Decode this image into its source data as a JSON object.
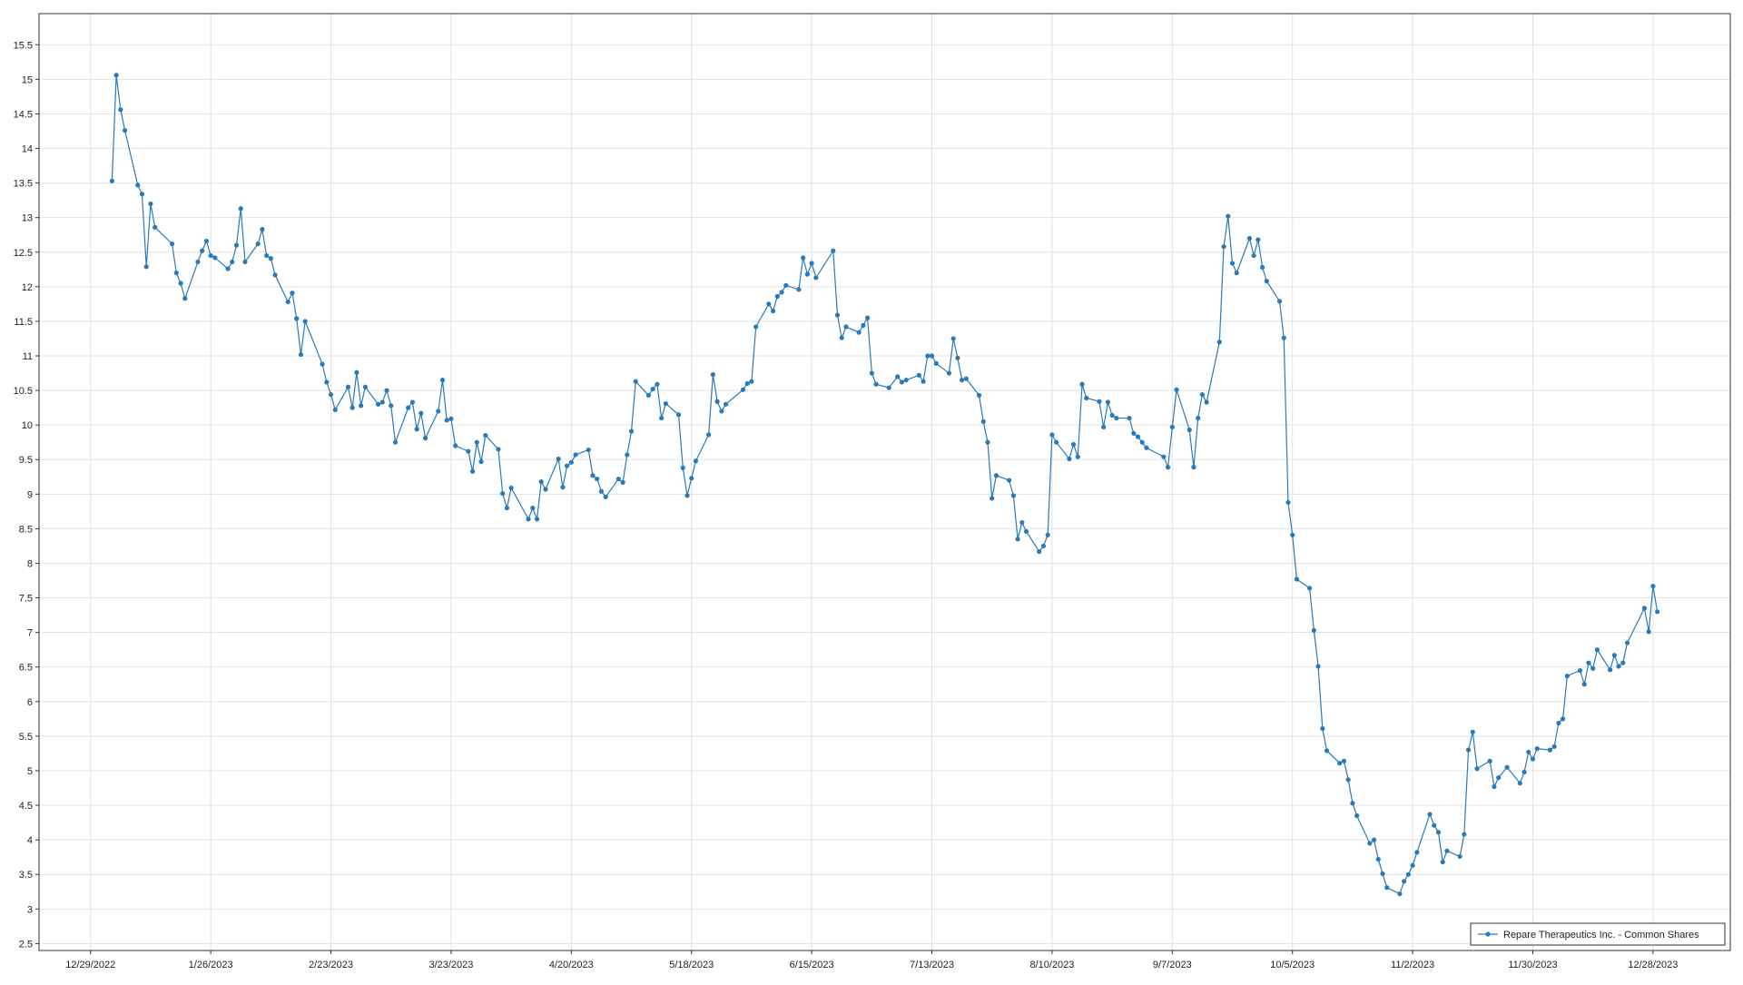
{
  "chart_data": {
    "type": "line",
    "x": [
      "1/3/2023",
      "1/4/2023",
      "1/5/2023",
      "1/6/2023",
      "1/9/2023",
      "1/10/2023",
      "1/11/2023",
      "1/12/2023",
      "1/13/2023",
      "1/17/2023",
      "1/18/2023",
      "1/19/2023",
      "1/20/2023",
      "1/23/2023",
      "1/24/2023",
      "1/25/2023",
      "1/26/2023",
      "1/27/2023",
      "1/30/2023",
      "1/31/2023",
      "2/1/2023",
      "2/2/2023",
      "2/3/2023",
      "2/6/2023",
      "2/7/2023",
      "2/8/2023",
      "2/9/2023",
      "2/10/2023",
      "2/13/2023",
      "2/14/2023",
      "2/15/2023",
      "2/16/2023",
      "2/17/2023",
      "2/21/2023",
      "2/22/2023",
      "2/23/2023",
      "2/24/2023",
      "2/27/2023",
      "2/28/2023",
      "3/1/2023",
      "3/2/2023",
      "3/3/2023",
      "3/6/2023",
      "3/7/2023",
      "3/8/2023",
      "3/9/2023",
      "3/10/2023",
      "3/13/2023",
      "3/14/2023",
      "3/15/2023",
      "3/16/2023",
      "3/17/2023",
      "3/20/2023",
      "3/21/2023",
      "3/22/2023",
      "3/23/2023",
      "3/24/2023",
      "3/27/2023",
      "3/28/2023",
      "3/29/2023",
      "3/30/2023",
      "3/31/2023",
      "4/3/2023",
      "4/4/2023",
      "4/5/2023",
      "4/6/2023",
      "4/10/2023",
      "4/11/2023",
      "4/12/2023",
      "4/13/2023",
      "4/14/2023",
      "4/17/2023",
      "4/18/2023",
      "4/19/2023",
      "4/20/2023",
      "4/21/2023",
      "4/24/2023",
      "4/25/2023",
      "4/26/2023",
      "4/27/2023",
      "4/28/2023",
      "5/1/2023",
      "5/2/2023",
      "5/3/2023",
      "5/4/2023",
      "5/5/2023",
      "5/8/2023",
      "5/9/2023",
      "5/10/2023",
      "5/11/2023",
      "5/12/2023",
      "5/15/2023",
      "5/16/2023",
      "5/17/2023",
      "5/18/2023",
      "5/19/2023",
      "5/22/2023",
      "5/23/2023",
      "5/24/2023",
      "5/25/2023",
      "5/26/2023",
      "5/30/2023",
      "5/31/2023",
      "6/1/2023",
      "6/2/2023",
      "6/5/2023",
      "6/6/2023",
      "6/7/2023",
      "6/8/2023",
      "6/9/2023",
      "6/12/2023",
      "6/13/2023",
      "6/14/2023",
      "6/15/2023",
      "6/16/2023",
      "6/20/2023",
      "6/21/2023",
      "6/22/2023",
      "6/23/2023",
      "6/26/2023",
      "6/27/2023",
      "6/28/2023",
      "6/29/2023",
      "6/30/2023",
      "7/3/2023",
      "7/5/2023",
      "7/6/2023",
      "7/7/2023",
      "7/10/2023",
      "7/11/2023",
      "7/12/2023",
      "7/13/2023",
      "7/14/2023",
      "7/17/2023",
      "7/18/2023",
      "7/19/2023",
      "7/20/2023",
      "7/21/2023",
      "7/24/2023",
      "7/25/2023",
      "7/26/2023",
      "7/27/2023",
      "7/28/2023",
      "7/31/2023",
      "8/1/2023",
      "8/2/2023",
      "8/3/2023",
      "8/4/2023",
      "8/7/2023",
      "8/8/2023",
      "8/9/2023",
      "8/10/2023",
      "8/11/2023",
      "8/14/2023",
      "8/15/2023",
      "8/16/2023",
      "8/17/2023",
      "8/18/2023",
      "8/21/2023",
      "8/22/2023",
      "8/23/2023",
      "8/24/2023",
      "8/25/2023",
      "8/28/2023",
      "8/29/2023",
      "8/30/2023",
      "8/31/2023",
      "9/1/2023",
      "9/5/2023",
      "9/6/2023",
      "9/7/2023",
      "9/8/2023",
      "9/11/2023",
      "9/12/2023",
      "9/13/2023",
      "9/14/2023",
      "9/15/2023",
      "9/18/2023",
      "9/19/2023",
      "9/20/2023",
      "9/21/2023",
      "9/22/2023",
      "9/25/2023",
      "9/26/2023",
      "9/27/2023",
      "9/28/2023",
      "9/29/2023",
      "10/2/2023",
      "10/3/2023",
      "10/4/2023",
      "10/5/2023",
      "10/6/2023",
      "10/9/2023",
      "10/10/2023",
      "10/11/2023",
      "10/12/2023",
      "10/13/2023",
      "10/16/2023",
      "10/17/2023",
      "10/18/2023",
      "10/19/2023",
      "10/20/2023",
      "10/23/2023",
      "10/24/2023",
      "10/25/2023",
      "10/26/2023",
      "10/27/2023",
      "10/30/2023",
      "10/31/2023",
      "11/1/2023",
      "11/2/2023",
      "11/3/2023",
      "11/6/2023",
      "11/7/2023",
      "11/8/2023",
      "11/9/2023",
      "11/10/2023",
      "11/13/2023",
      "11/14/2023",
      "11/15/2023",
      "11/16/2023",
      "11/17/2023",
      "11/20/2023",
      "11/21/2023",
      "11/22/2023",
      "11/24/2023",
      "11/27/2023",
      "11/28/2023",
      "11/29/2023",
      "11/30/2023",
      "12/1/2023",
      "12/4/2023",
      "12/5/2023",
      "12/6/2023",
      "12/7/2023",
      "12/8/2023",
      "12/11/2023",
      "12/12/2023",
      "12/13/2023",
      "12/14/2023",
      "12/15/2023",
      "12/18/2023",
      "12/19/2023",
      "12/20/2023",
      "12/21/2023",
      "12/22/2023",
      "12/26/2023",
      "12/27/2023",
      "12/28/2023",
      "12/29/2023"
    ],
    "series": [
      {
        "name": "Repare Therapeutics Inc. - Common Shares",
        "color": "#2a7ab8",
        "values": [
          13.53,
          15.06,
          14.56,
          14.26,
          13.47,
          13.34,
          12.29,
          13.2,
          12.86,
          12.62,
          12.2,
          12.05,
          11.83,
          12.36,
          12.52,
          12.66,
          12.45,
          12.42,
          12.26,
          12.36,
          12.6,
          13.13,
          12.36,
          12.62,
          12.83,
          12.45,
          12.41,
          12.17,
          11.78,
          11.91,
          11.54,
          11.02,
          11.5,
          10.88,
          10.62,
          10.44,
          10.22,
          10.55,
          10.25,
          10.76,
          10.28,
          10.55,
          10.3,
          10.33,
          10.5,
          10.28,
          9.75,
          10.25,
          10.33,
          9.94,
          10.17,
          9.81,
          10.2,
          10.65,
          10.07,
          10.09,
          9.7,
          9.62,
          9.33,
          9.75,
          9.47,
          9.85,
          9.65,
          9.01,
          8.8,
          9.09,
          8.64,
          8.8,
          8.64,
          9.18,
          9.07,
          9.51,
          9.1,
          9.41,
          9.46,
          9.57,
          9.64,
          9.27,
          9.22,
          9.04,
          8.96,
          9.22,
          9.17,
          9.57,
          9.91,
          10.63,
          10.43,
          10.52,
          10.59,
          10.1,
          10.31,
          10.15,
          9.38,
          8.98,
          9.23,
          9.48,
          9.86,
          10.73,
          10.34,
          10.2,
          10.3,
          10.51,
          10.6,
          10.63,
          11.42,
          11.75,
          11.65,
          11.86,
          11.92,
          12.02,
          11.96,
          12.42,
          12.18,
          12.34,
          12.13,
          12.52,
          11.59,
          11.26,
          11.42,
          11.34,
          11.44,
          11.55,
          10.75,
          10.59,
          10.54,
          10.7,
          10.62,
          10.65,
          10.72,
          10.63,
          11.0,
          11.0,
          10.89,
          10.75,
          11.25,
          10.97,
          10.65,
          10.67,
          10.43,
          10.05,
          9.75,
          8.94,
          9.27,
          9.2,
          8.98,
          8.35,
          8.59,
          8.46,
          8.17,
          8.25,
          8.41,
          9.86,
          9.75,
          9.51,
          9.72,
          9.54,
          10.59,
          10.39,
          10.34,
          9.97,
          10.33,
          10.14,
          10.1,
          10.1,
          9.88,
          9.83,
          9.75,
          9.67,
          9.54,
          9.39,
          9.97,
          10.51,
          9.93,
          9.39,
          10.1,
          10.44,
          10.33,
          11.2,
          12.58,
          13.02,
          12.34,
          12.2,
          12.7,
          12.45,
          12.68,
          12.28,
          12.08,
          11.79,
          11.26,
          8.88,
          8.41,
          7.77,
          7.64,
          7.03,
          6.51,
          5.61,
          5.29,
          5.11,
          5.14,
          4.87,
          4.53,
          4.35,
          3.95,
          4.0,
          3.72,
          3.51,
          3.31,
          3.22,
          3.4,
          3.5,
          3.63,
          3.82,
          4.37,
          4.21,
          4.11,
          3.68,
          3.84,
          3.76,
          4.08,
          5.3,
          5.56,
          5.03,
          5.14,
          4.77,
          4.9,
          5.05,
          4.82,
          4.98,
          5.27,
          5.17,
          5.32,
          5.3,
          5.35,
          5.69,
          5.75,
          6.37,
          6.45,
          6.25,
          6.56,
          6.48,
          6.75,
          6.46,
          6.67,
          6.51,
          6.56,
          6.85,
          7.35,
          7.01,
          7.67,
          7.3
        ]
      }
    ],
    "xlim": [
      "12/17/2022",
      "1/15/2024"
    ],
    "xticks": [
      "12/29/2022",
      "1/26/2023",
      "2/23/2023",
      "3/23/2023",
      "4/20/2023",
      "5/18/2023",
      "6/15/2023",
      "7/13/2023",
      "8/10/2023",
      "9/7/2023",
      "10/5/2023",
      "11/2/2023",
      "11/30/2023",
      "12/28/2023"
    ],
    "ylim": [
      2.4,
      15.95
    ],
    "yticks": [
      2.5,
      3,
      3.5,
      4,
      4.5,
      5,
      5.5,
      6,
      6.5,
      7,
      7.5,
      8,
      8.5,
      9,
      9.5,
      10,
      10.5,
      11,
      11.5,
      12,
      12.5,
      13,
      13.5,
      14,
      14.5,
      15,
      15.5
    ],
    "grid": true,
    "legend": "bottom-right"
  }
}
